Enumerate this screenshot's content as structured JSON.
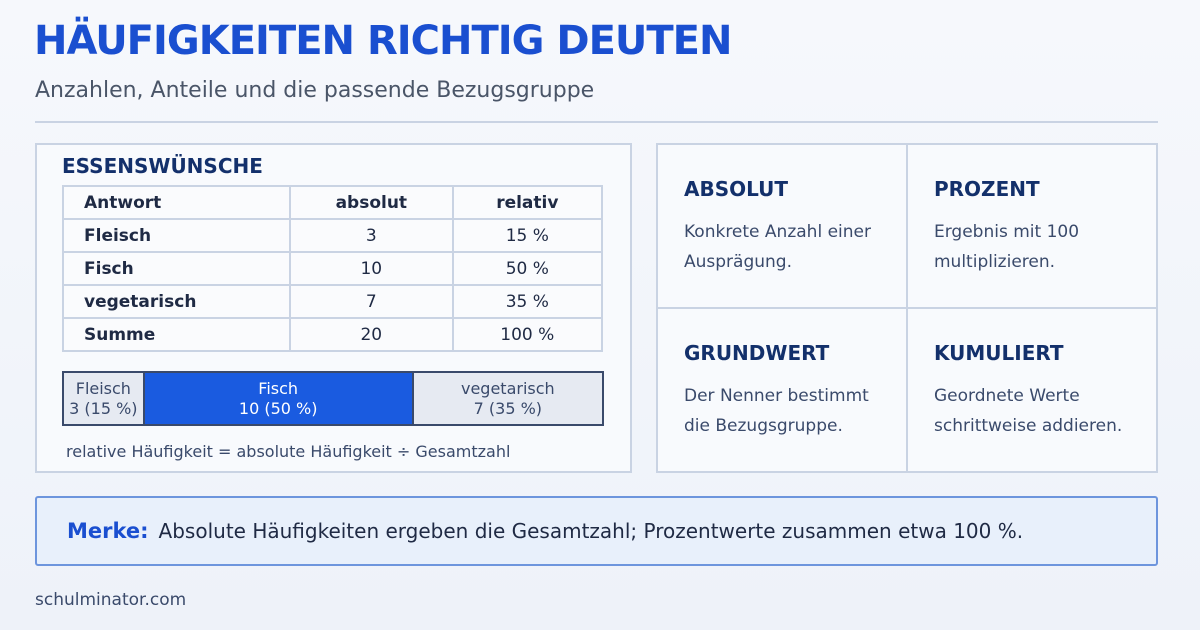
{
  "header": {
    "title": "HÄUFIGKEITEN RICHTIG DEUTEN",
    "subtitle": "Anzahlen, Anteile und die passende Bezugsgruppe"
  },
  "table": {
    "title": "ESSENSWÜNSCHE",
    "columns": [
      "Antwort",
      "absolut",
      "relativ"
    ],
    "rows": [
      [
        "Fleisch",
        "3",
        "15 %"
      ],
      [
        "Fisch",
        "10",
        "50 %"
      ],
      [
        "vegetarisch",
        "7",
        "35 %"
      ],
      [
        "Summe",
        "20",
        "100 %"
      ]
    ]
  },
  "bar": {
    "segments": [
      {
        "label": "Fleisch",
        "text": "3 (15 %)",
        "share": 15
      },
      {
        "label": "Fisch",
        "text": "10 (50 %)",
        "share": 50
      },
      {
        "label": "vegetarisch",
        "text": "7 (35 %)",
        "share": 35
      }
    ]
  },
  "formula": "relative Häufigkeit = absolute Häufigkeit ÷ Gesamtzahl",
  "cards": [
    {
      "title": "ABSOLUT",
      "text": "Konkrete Anzahl einer Ausprägung."
    },
    {
      "title": "PROZENT",
      "text": "Ergebnis mit 100 multiplizieren."
    },
    {
      "title": "GRUNDWERT",
      "text": "Der Nenner bestimmt die Bezugsgruppe."
    },
    {
      "title": "KUMULIERT",
      "text": "Geordnete Werte schrittweise addieren."
    }
  ],
  "note": {
    "label": "Merke:",
    "text": "Absolute Häufigkeiten ergeben die Gesamtzahl; Prozentwerte zusammen etwa 100 %."
  },
  "footer": "schulminator.com"
}
